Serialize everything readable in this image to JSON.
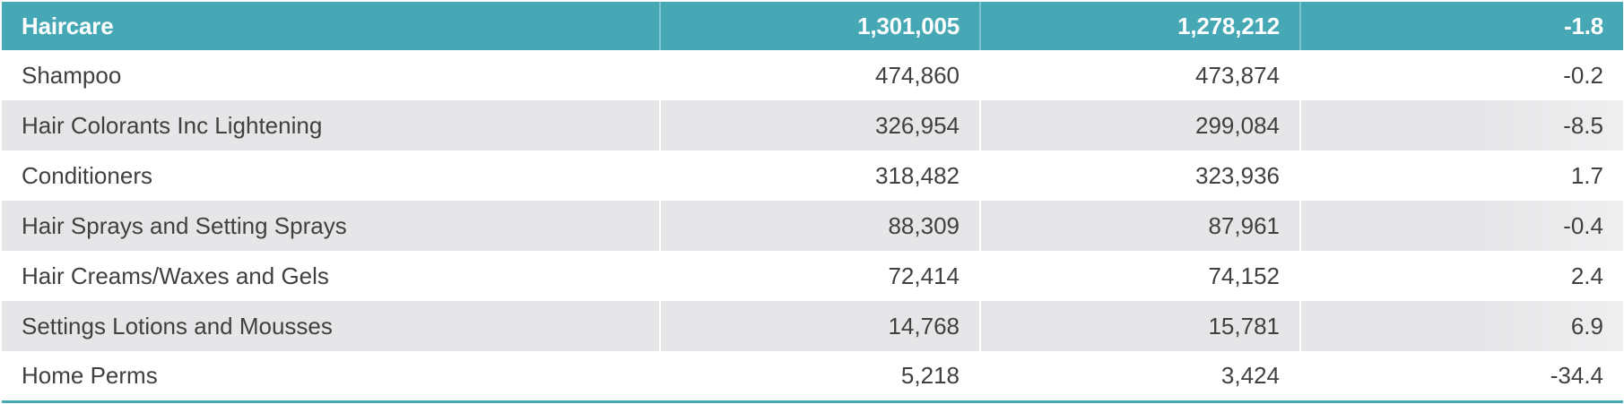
{
  "colors": {
    "header_bg": "#46a8b5",
    "header_text": "#ffffff",
    "stripe": "#e6e6e8",
    "text": "#404040"
  },
  "chart_data": {
    "type": "table",
    "header": {
      "category": "Haircare",
      "col1": "1,301,005",
      "col2": "1,278,212",
      "col3": "-1.8"
    },
    "rows": [
      {
        "category": "Shampoo",
        "col1": "474,860",
        "col2": "473,874",
        "col3": "-0.2"
      },
      {
        "category": "Hair Colorants Inc Lightening",
        "col1": "326,954",
        "col2": "299,084",
        "col3": "-8.5"
      },
      {
        "category": "Conditioners",
        "col1": "318,482",
        "col2": "323,936",
        "col3": "1.7"
      },
      {
        "category": "Hair Sprays and Setting Sprays",
        "col1": "88,309",
        "col2": "87,961",
        "col3": "-0.4"
      },
      {
        "category": "Hair Creams/Waxes and Gels",
        "col1": "72,414",
        "col2": "74,152",
        "col3": "2.4"
      },
      {
        "category": "Settings Lotions and Mousses",
        "col1": "14,768",
        "col2": "15,781",
        "col3": "6.9"
      },
      {
        "category": "Home Perms",
        "col1": "5,218",
        "col2": "3,424",
        "col3": "-34.4"
      }
    ]
  }
}
